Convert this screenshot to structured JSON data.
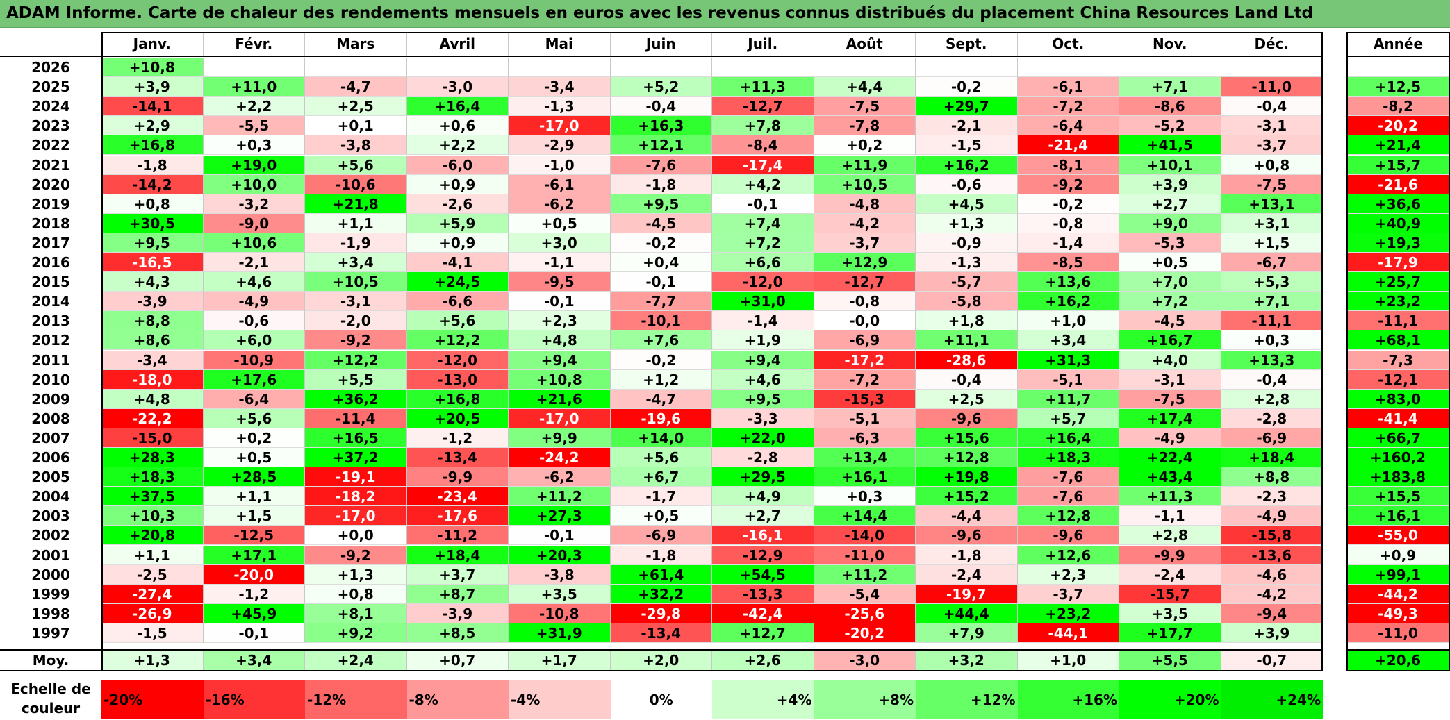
{
  "title": "ADAM Informe. Carte de chaleur des rendements mensuels en euros avec les revenus connus distribués du placement China Resources Land Ltd",
  "chart_data": {
    "type": "heatmap",
    "columns": [
      "Janv.",
      "Févr.",
      "Mars",
      "Avril",
      "Mai",
      "Juin",
      "Juil.",
      "Août",
      "Sept.",
      "Oct.",
      "Nov.",
      "Déc."
    ],
    "year_header": "Année",
    "rows": [
      {
        "year": "2026",
        "values": [
          "+10,8",
          "",
          "",
          "",
          "",
          "",
          "",
          "",
          "",
          "",
          "",
          ""
        ],
        "annual": ""
      },
      {
        "year": "2025",
        "values": [
          "+3,9",
          "+11,0",
          "-4,7",
          "-3,0",
          "-3,4",
          "+5,2",
          "+11,3",
          "+4,4",
          "-0,2",
          "-6,1",
          "+7,1",
          "-11,0"
        ],
        "annual": "+12,5"
      },
      {
        "year": "2024",
        "values": [
          "-14,1",
          "+2,2",
          "+2,5",
          "+16,4",
          "-1,3",
          "-0,4",
          "-12,7",
          "-7,5",
          "+29,7",
          "-7,2",
          "-8,6",
          "-0,4"
        ],
        "annual": "-8,2"
      },
      {
        "year": "2023",
        "values": [
          "+2,9",
          "-5,5",
          "+0,1",
          "+0,6",
          "-17,0",
          "+16,3",
          "+7,8",
          "-7,8",
          "-2,1",
          "-6,4",
          "-5,2",
          "-3,1"
        ],
        "annual": "-20,2"
      },
      {
        "year": "2022",
        "values": [
          "+16,8",
          "+0,3",
          "-3,8",
          "+2,2",
          "-2,9",
          "+12,1",
          "-8,4",
          "+0,2",
          "-1,5",
          "-21,4",
          "+41,5",
          "-3,7"
        ],
        "annual": "+21,4"
      },
      {
        "year": "2021",
        "values": [
          "-1,8",
          "+19,0",
          "+5,6",
          "-6,0",
          "-1,0",
          "-7,6",
          "-17,4",
          "+11,9",
          "+16,2",
          "-8,1",
          "+10,1",
          "+0,8"
        ],
        "annual": "+15,7"
      },
      {
        "year": "2020",
        "values": [
          "-14,2",
          "+10,0",
          "-10,6",
          "+0,9",
          "-6,1",
          "-1,8",
          "+4,2",
          "+10,5",
          "-0,6",
          "-9,2",
          "+3,9",
          "-7,5"
        ],
        "annual": "-21,6"
      },
      {
        "year": "2019",
        "values": [
          "+0,8",
          "-3,2",
          "+21,8",
          "-2,6",
          "-6,2",
          "+9,5",
          "-0,1",
          "-4,8",
          "+4,5",
          "-0,2",
          "+2,7",
          "+13,1"
        ],
        "annual": "+36,6"
      },
      {
        "year": "2018",
        "values": [
          "+30,5",
          "-9,0",
          "+1,1",
          "+5,9",
          "+0,5",
          "-4,5",
          "+7,4",
          "-4,2",
          "+1,3",
          "-0,8",
          "+9,0",
          "+3,1"
        ],
        "annual": "+40,9"
      },
      {
        "year": "2017",
        "values": [
          "+9,5",
          "+10,6",
          "-1,9",
          "+0,9",
          "+3,0",
          "-0,2",
          "+7,2",
          "-3,7",
          "-0,9",
          "-1,4",
          "-5,3",
          "+1,5"
        ],
        "annual": "+19,3"
      },
      {
        "year": "2016",
        "values": [
          "-16,5",
          "-2,1",
          "+3,4",
          "-4,1",
          "-1,1",
          "+0,4",
          "+6,6",
          "+12,9",
          "-1,3",
          "-8,5",
          "+0,5",
          "-6,7"
        ],
        "annual": "-17,9"
      },
      {
        "year": "2015",
        "values": [
          "+4,3",
          "+4,6",
          "+10,5",
          "+24,5",
          "-9,5",
          "-0,1",
          "-12,0",
          "-12,7",
          "-5,7",
          "+13,6",
          "+7,0",
          "+5,3"
        ],
        "annual": "+25,7"
      },
      {
        "year": "2014",
        "values": [
          "-3,9",
          "-4,9",
          "-3,1",
          "-6,6",
          "-0,1",
          "-7,7",
          "+31,0",
          "-0,8",
          "-5,8",
          "+16,2",
          "+7,2",
          "+7,1"
        ],
        "annual": "+23,2"
      },
      {
        "year": "2013",
        "values": [
          "+8,8",
          "-0,6",
          "-2,0",
          "+5,6",
          "+2,3",
          "-10,1",
          "-1,4",
          "-0,0",
          "+1,8",
          "+1,0",
          "-4,5",
          "-11,1"
        ],
        "annual": "-11,1"
      },
      {
        "year": "2012",
        "values": [
          "+8,6",
          "+6,0",
          "-9,2",
          "+12,2",
          "+4,8",
          "+7,6",
          "+1,9",
          "-6,9",
          "+11,1",
          "+3,4",
          "+16,7",
          "+0,3"
        ],
        "annual": "+68,1"
      },
      {
        "year": "2011",
        "values": [
          "-3,4",
          "-10,9",
          "+12,2",
          "-12,0",
          "+9,4",
          "-0,2",
          "+9,4",
          "-17,2",
          "-28,6",
          "+31,3",
          "+4,0",
          "+13,3"
        ],
        "annual": "-7,3"
      },
      {
        "year": "2010",
        "values": [
          "-18,0",
          "+17,6",
          "+5,5",
          "-13,0",
          "+10,8",
          "+1,2",
          "+4,6",
          "-7,2",
          "-0,4",
          "-5,1",
          "-3,1",
          "-0,4"
        ],
        "annual": "-12,1"
      },
      {
        "year": "2009",
        "values": [
          "+4,8",
          "-6,4",
          "+36,2",
          "+16,8",
          "+21,6",
          "-4,7",
          "+9,5",
          "-15,3",
          "+2,5",
          "+11,7",
          "-7,5",
          "+2,8"
        ],
        "annual": "+83,0"
      },
      {
        "year": "2008",
        "values": [
          "-22,2",
          "+5,6",
          "-11,4",
          "+20,5",
          "-17,0",
          "-19,6",
          "-3,3",
          "-5,1",
          "-9,6",
          "+5,7",
          "+17,4",
          "-2,8"
        ],
        "annual": "-41,4"
      },
      {
        "year": "2007",
        "values": [
          "-15,0",
          "+0,2",
          "+16,5",
          "-1,2",
          "+9,9",
          "+14,0",
          "+22,0",
          "-6,3",
          "+15,6",
          "+16,4",
          "-4,9",
          "-6,9"
        ],
        "annual": "+66,7"
      },
      {
        "year": "2006",
        "values": [
          "+28,3",
          "+0,5",
          "+37,2",
          "-13,4",
          "-24,2",
          "+5,6",
          "-2,8",
          "+13,4",
          "+12,8",
          "+18,3",
          "+22,4",
          "+18,4"
        ],
        "annual": "+160,2"
      },
      {
        "year": "2005",
        "values": [
          "+18,3",
          "+28,5",
          "-19,1",
          "-9,9",
          "-6,2",
          "+6,7",
          "+29,5",
          "+16,1",
          "+19,8",
          "-7,6",
          "+43,4",
          "+8,8"
        ],
        "annual": "+183,8"
      },
      {
        "year": "2004",
        "values": [
          "+37,5",
          "+1,1",
          "-18,2",
          "-23,4",
          "+11,2",
          "-1,7",
          "+4,9",
          "+0,3",
          "+15,2",
          "-7,6",
          "+11,3",
          "-2,3"
        ],
        "annual": "+15,5"
      },
      {
        "year": "2003",
        "values": [
          "+10,3",
          "+1,5",
          "-17,0",
          "-17,6",
          "+27,3",
          "+0,5",
          "+2,7",
          "+14,4",
          "-4,4",
          "+12,8",
          "-1,1",
          "-4,9"
        ],
        "annual": "+16,1"
      },
      {
        "year": "2002",
        "values": [
          "+20,8",
          "-12,5",
          "+0,0",
          "-11,2",
          "-0,1",
          "-6,9",
          "-16,1",
          "-14,0",
          "-9,6",
          "-9,6",
          "+2,8",
          "-15,8"
        ],
        "annual": "-55,0"
      },
      {
        "year": "2001",
        "values": [
          "+1,1",
          "+17,1",
          "-9,2",
          "+18,4",
          "+20,3",
          "-1,8",
          "-12,9",
          "-11,0",
          "-1,8",
          "+12,6",
          "-9,9",
          "-13,6"
        ],
        "annual": "+0,9"
      },
      {
        "year": "2000",
        "values": [
          "-2,5",
          "-20,0",
          "+1,3",
          "+3,7",
          "-3,8",
          "+61,4",
          "+54,5",
          "+11,2",
          "-2,4",
          "+2,3",
          "-2,4",
          "-4,6"
        ],
        "annual": "+99,1"
      },
      {
        "year": "1999",
        "values": [
          "-27,4",
          "-1,2",
          "+0,8",
          "+8,7",
          "+3,5",
          "+32,2",
          "-13,3",
          "-5,4",
          "-19,7",
          "-3,7",
          "-15,7",
          "-4,2"
        ],
        "annual": "-44,2"
      },
      {
        "year": "1998",
        "values": [
          "-26,9",
          "+45,9",
          "+8,1",
          "-3,9",
          "-10,8",
          "-29,8",
          "-42,4",
          "-25,6",
          "+44,4",
          "+23,2",
          "+3,5",
          "-9,4"
        ],
        "annual": "-49,3"
      },
      {
        "year": "1997",
        "values": [
          "-1,5",
          "-0,1",
          "+9,2",
          "+8,5",
          "+31,9",
          "-13,4",
          "+12,7",
          "-20,2",
          "+7,9",
          "-44,1",
          "+17,7",
          "+3,9"
        ],
        "annual": "-11,0"
      }
    ],
    "average": {
      "label": "Moy.",
      "values": [
        "+1,3",
        "+3,4",
        "+2,4",
        "+0,7",
        "+1,7",
        "+2,0",
        "+2,6",
        "-3,0",
        "+3,2",
        "+1,0",
        "+5,5",
        "-0,7"
      ],
      "annual": "+20,6"
    },
    "color_scale": {
      "label": "Echelle de couleur",
      "stops": [
        {
          "label": "-20%",
          "color": "#ff0000"
        },
        {
          "label": "-16%",
          "color": "#ff3333"
        },
        {
          "label": "-12%",
          "color": "#ff6666"
        },
        {
          "label": "-8%",
          "color": "#ff9999"
        },
        {
          "label": "-4%",
          "color": "#ffcccc"
        },
        {
          "label": "0%",
          "color": "#ffffff"
        },
        {
          "label": "+4%",
          "color": "#ccffcc"
        },
        {
          "label": "+8%",
          "color": "#99ff99"
        },
        {
          "label": "+12%",
          "color": "#66ff66"
        },
        {
          "label": "+16%",
          "color": "#33ff33"
        },
        {
          "label": "+20%",
          "color": "#00ff00"
        },
        {
          "label": "+24%",
          "color": "#00ee00"
        }
      ]
    }
  },
  "colors": {
    "title_bar": "#77c677",
    "negative": "#ff0000",
    "positive": "#00ff00",
    "neutral": "#ffffff"
  }
}
